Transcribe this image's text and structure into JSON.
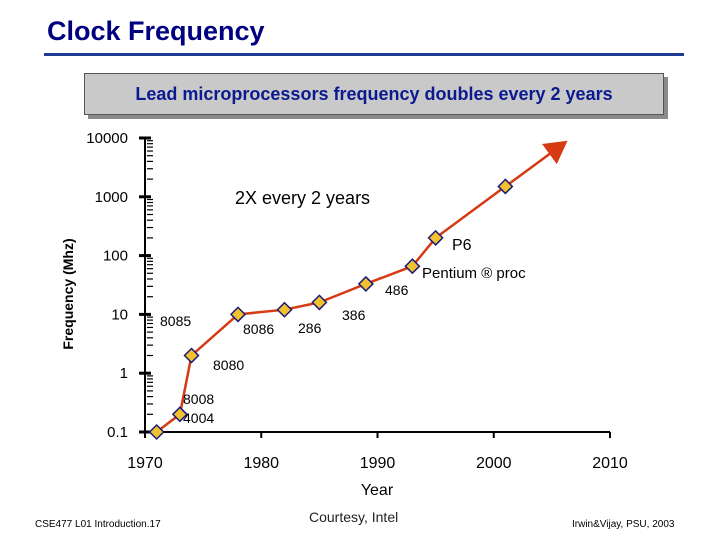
{
  "slide": {
    "title": "Clock Frequency",
    "subtitle": "Lead microprocessors frequency doubles every 2 years",
    "footer_left": "CSE477  L01 Introduction.17",
    "footer_center": "Courtesy, Intel",
    "footer_right": "Irwin&Vijay, PSU, 2003"
  },
  "chart_data": {
    "type": "line",
    "scale_y": "log",
    "xlabel": "Year",
    "ylabel": "Frequency (Mhz)",
    "xlim": [
      1970,
      2010
    ],
    "ylim": [
      0.1,
      10000
    ],
    "x_ticks": [
      1970,
      1980,
      1990,
      2000,
      2010
    ],
    "y_ticks": [
      {
        "value": 0.1,
        "label": "0.1"
      },
      {
        "value": 1,
        "label": "1"
      },
      {
        "value": 10,
        "label": "10"
      },
      {
        "value": 100,
        "label": "100"
      },
      {
        "value": 1000,
        "label": "1000"
      },
      {
        "value": 10000,
        "label": "10000"
      }
    ],
    "series": [
      {
        "name": "Lead microprocessor frequency",
        "points": [
          {
            "x": 1971,
            "y": 0.1
          },
          {
            "x": 1973,
            "y": 0.2
          },
          {
            "x": 1974,
            "y": 2
          },
          {
            "x": 1978,
            "y": 10
          },
          {
            "x": 1982,
            "y": 12
          },
          {
            "x": 1985,
            "y": 16
          },
          {
            "x": 1989,
            "y": 33
          },
          {
            "x": 1993,
            "y": 66
          },
          {
            "x": 1995,
            "y": 200
          },
          {
            "x": 2001,
            "y": 1500
          }
        ]
      }
    ],
    "trend_arrow": {
      "from": {
        "x": 2001,
        "y": 1500
      },
      "to": {
        "x": 2006,
        "y": 8000
      }
    },
    "annotations": [
      {
        "text": "2X every 2 years",
        "kind": "caption"
      },
      {
        "text": "8085"
      },
      {
        "text": "8086"
      },
      {
        "text": "286"
      },
      {
        "text": "386"
      },
      {
        "text": "486"
      },
      {
        "text": "P6"
      },
      {
        "text": "Pentium ® proc"
      },
      {
        "text": "8080"
      },
      {
        "text": "8008"
      },
      {
        "text": "4004"
      }
    ],
    "colors": {
      "line": "#d63a12",
      "marker_fill": "#f2c12e",
      "marker_stroke": "#1a1a7a",
      "axis": "#000000"
    }
  }
}
